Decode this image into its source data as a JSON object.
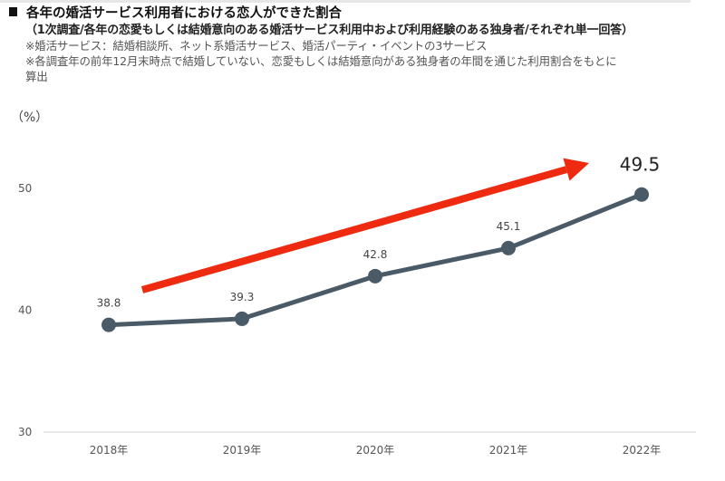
{
  "header": {
    "title": "各年の婚活サービス利用者における恋人ができた割合",
    "subtitle": "（1次調査/各年の恋愛もしくは結婚意向のある婚活サービス利用中および利用経験のある独身者/それぞれ単一回答）",
    "notes": [
      "※婚活サービス：結婚相談所、ネット系婚活サービス、婚活パーティ・イベントの3サービス",
      "※各調査年の前年12月末時点で結婚していない、恋愛もしくは結婚意向がある独身者の年間を通じた利用割合をもとに",
      "算出"
    ]
  },
  "chart_data": {
    "type": "line",
    "title": "各年の婚活サービス利用者における恋人ができた割合",
    "xlabel": "",
    "ylabel": "（%）",
    "categories": [
      "2018年",
      "2019年",
      "2020年",
      "2021年",
      "2022年"
    ],
    "series": [
      {
        "name": "恋人ができた割合",
        "values": [
          38.8,
          39.3,
          42.8,
          45.1,
          49.5
        ],
        "color": "#4a5a66"
      }
    ],
    "data_labels": [
      "38.8",
      "39.3",
      "42.8",
      "45.1",
      "49.5"
    ],
    "highlight_last_label": true,
    "ylim": [
      30,
      50
    ],
    "yticks": [
      30,
      40,
      50
    ],
    "ytick_labels": [
      "30",
      "40",
      "50"
    ],
    "grid": false,
    "legend": "none",
    "annotations": [
      {
        "type": "trend-arrow",
        "direction": "up-right",
        "color": "#ee2a10",
        "description": "increasing trend"
      }
    ]
  }
}
